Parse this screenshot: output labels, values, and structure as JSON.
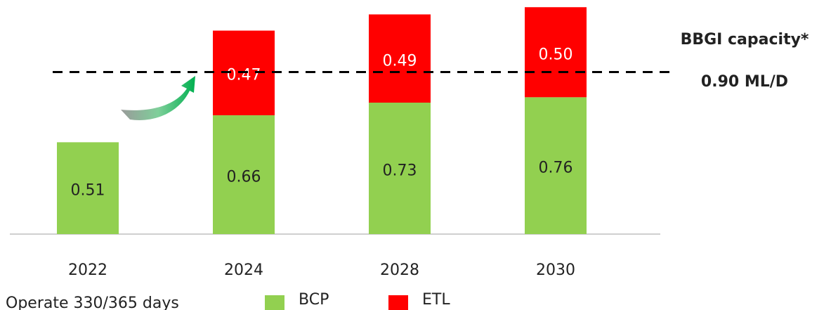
{
  "chart_data": {
    "type": "stacked_bar",
    "categories": [
      "2022",
      "2024",
      "2028",
      "2030"
    ],
    "series": [
      {
        "name": "BCP",
        "color": "#92d050",
        "values": [
          0.51,
          0.66,
          0.73,
          0.76
        ]
      },
      {
        "name": "ETL",
        "color": "#ff0000",
        "values": [
          null,
          0.47,
          0.49,
          0.5
        ],
        "value_labels": [
          null,
          "0.47",
          "0.49",
          "0.50"
        ]
      }
    ],
    "ylim": [
      0,
      1.3
    ],
    "reference_line": {
      "value": 0.9,
      "label": "BBGI capacity*",
      "value_label": "0.90 ML/D"
    },
    "footnote": "Operate 330/365 days",
    "legend": "bottom"
  }
}
